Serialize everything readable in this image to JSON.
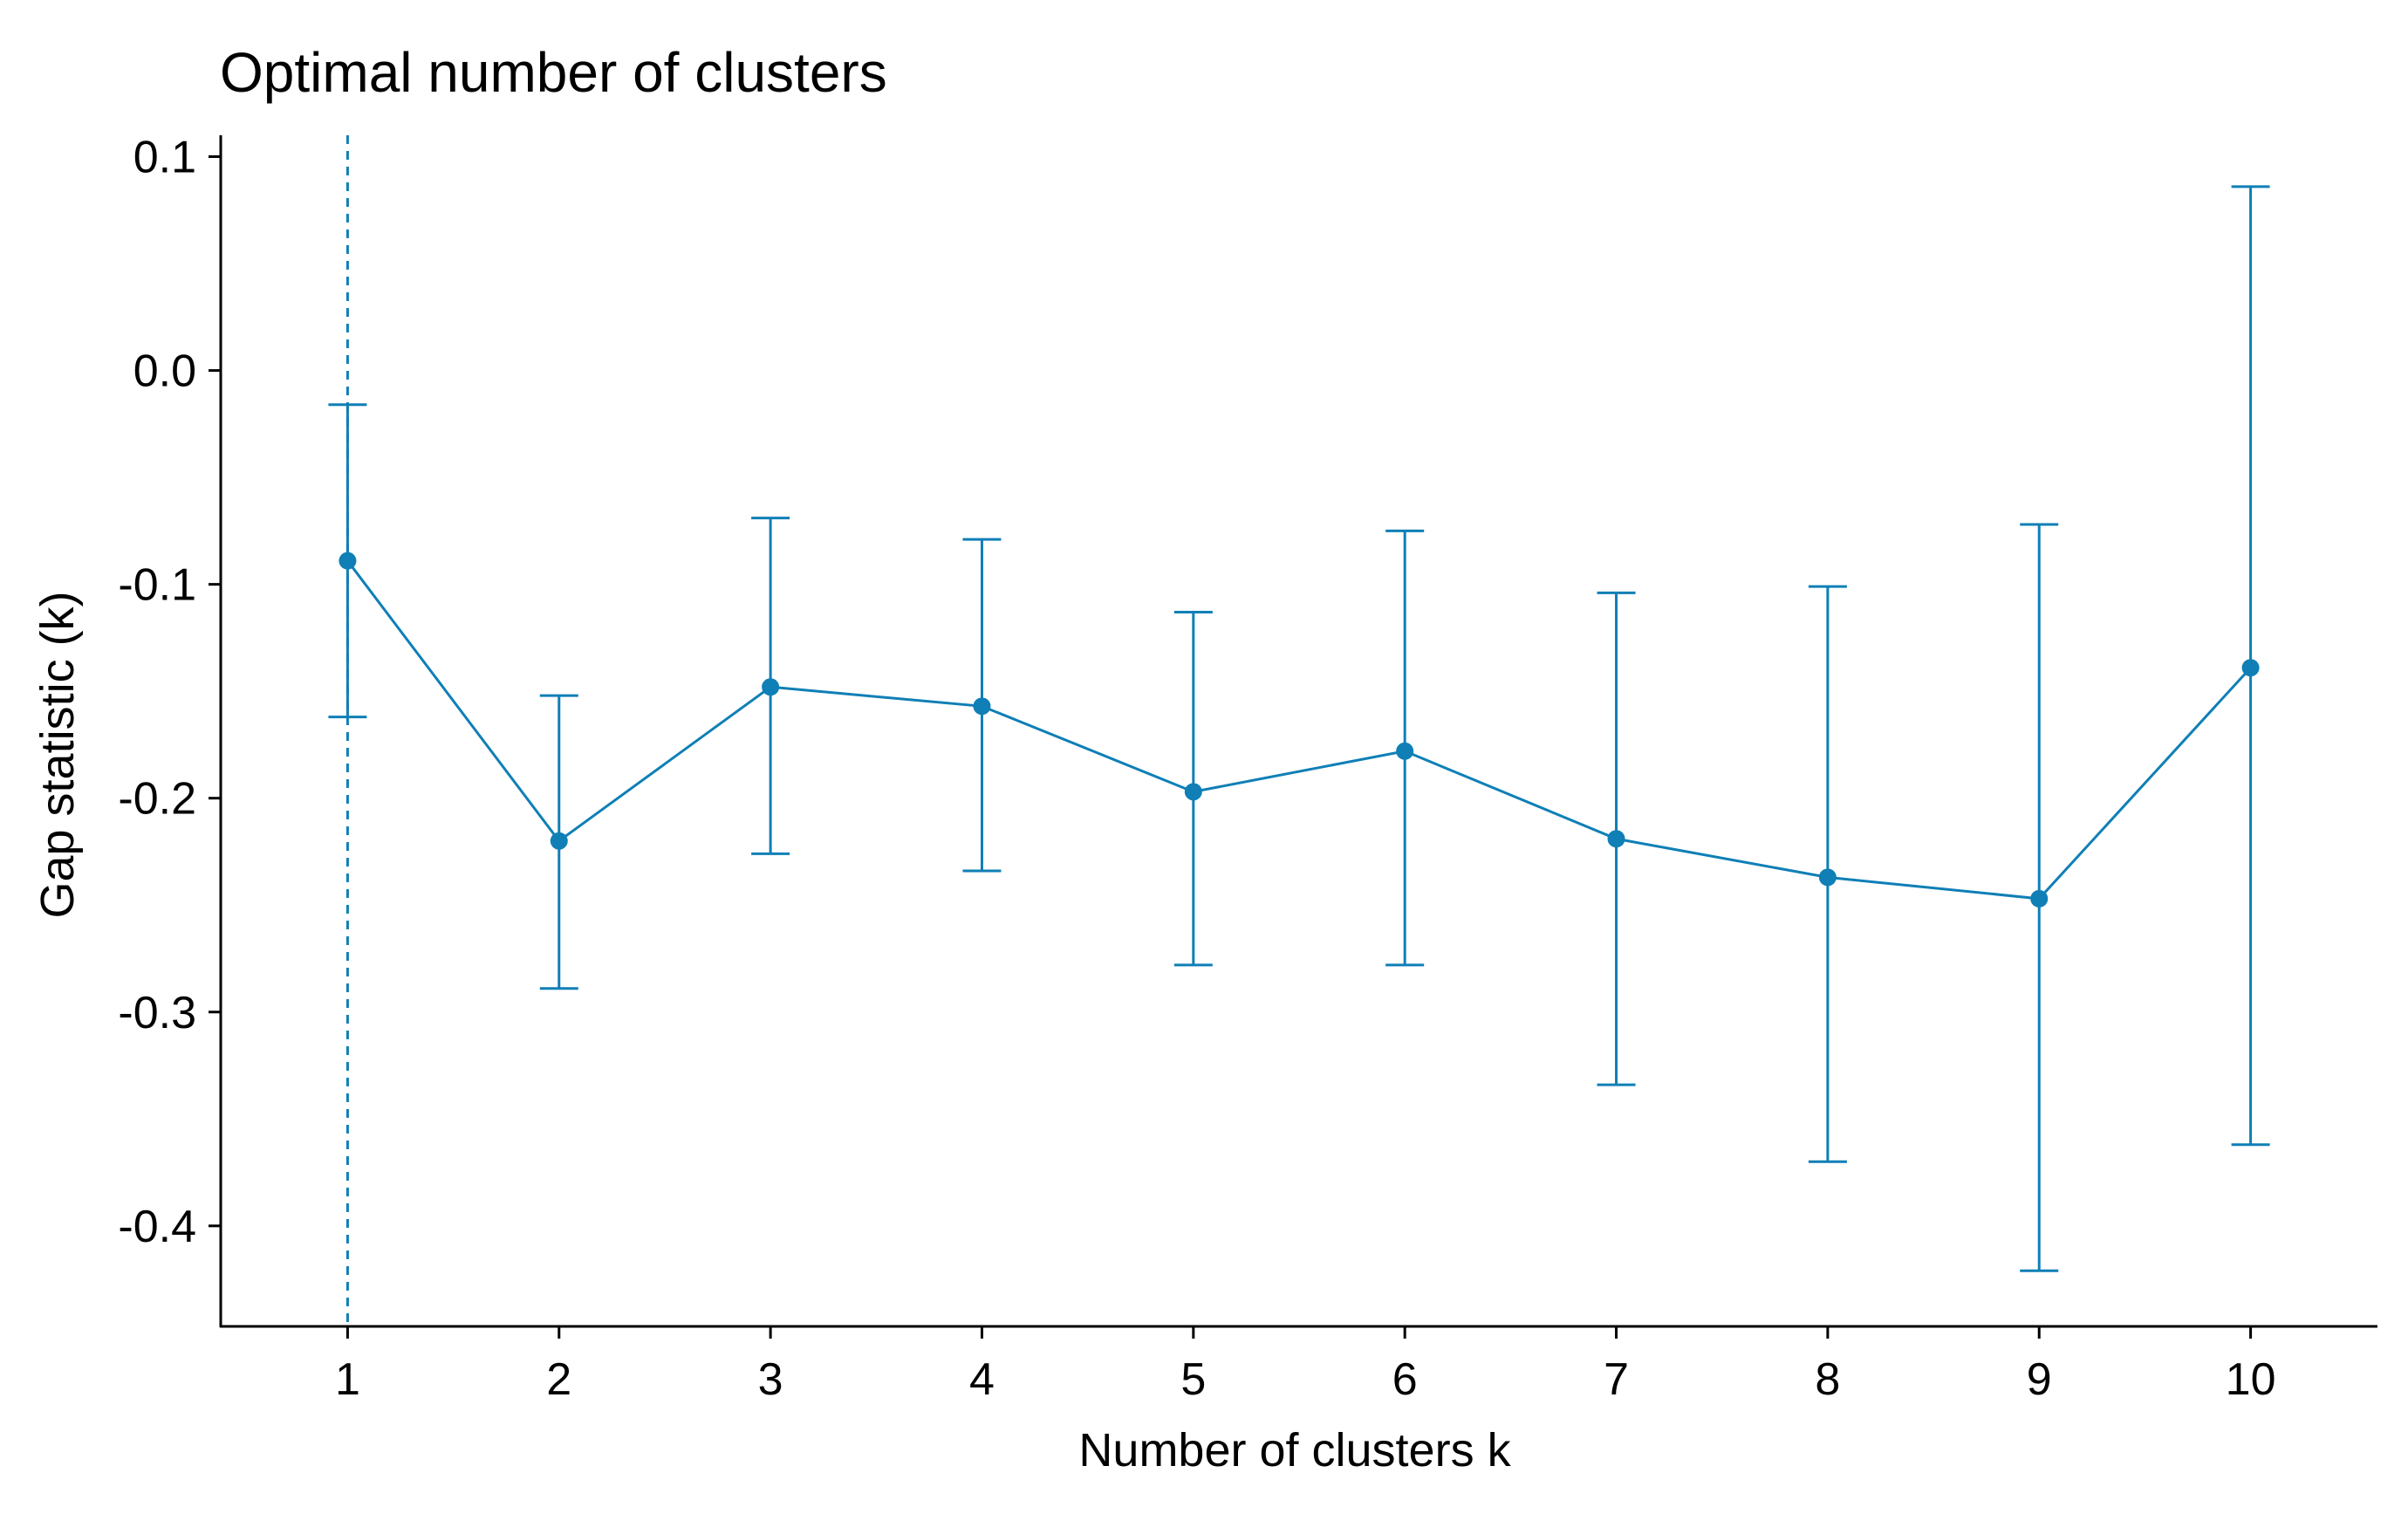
{
  "chart_data": {
    "type": "line",
    "title": "Optimal number of clusters",
    "xlabel": "Number of clusters k",
    "ylabel": "Gap statistic (k)",
    "x": [
      1,
      2,
      3,
      4,
      5,
      6,
      7,
      8,
      9,
      10
    ],
    "x_tick_labels": [
      "1",
      "2",
      "3",
      "4",
      "5",
      "6",
      "7",
      "8",
      "9",
      "10"
    ],
    "y_ticks": [
      0.1,
      0.0,
      -0.1,
      -0.2,
      -0.3,
      -0.4
    ],
    "y_tick_labels": [
      "0.1",
      "0.0",
      "-0.1",
      "-0.2",
      "-0.3",
      "-0.4"
    ],
    "ylim": [
      -0.447,
      0.11
    ],
    "xlim": [
      0.4,
      10.6
    ],
    "series": [
      {
        "values": [
          -0.089,
          -0.22,
          -0.148,
          -0.157,
          -0.197,
          -0.178,
          -0.219,
          -0.237,
          -0.247,
          -0.139
        ],
        "ymin": [
          -0.162,
          -0.289,
          -0.226,
          -0.234,
          -0.278,
          -0.278,
          -0.334,
          -0.37,
          -0.421,
          -0.362
        ],
        "ymax": [
          -0.016,
          -0.152,
          -0.069,
          -0.079,
          -0.113,
          -0.075,
          -0.104,
          -0.101,
          -0.072,
          0.086
        ]
      }
    ],
    "optimal_k": 1,
    "color": "#0f7fb6",
    "grid": false,
    "legend": "none"
  }
}
